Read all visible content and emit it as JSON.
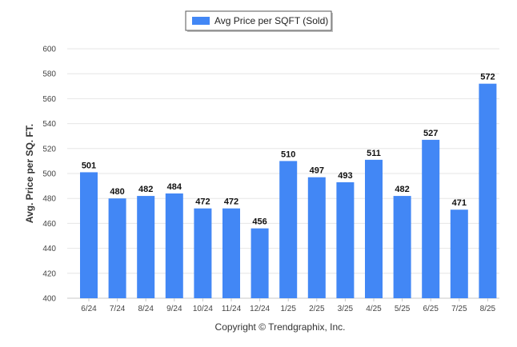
{
  "chart_data": {
    "type": "bar",
    "categories": [
      "6/24",
      "7/24",
      "8/24",
      "9/24",
      "10/24",
      "11/24",
      "12/24",
      "1/25",
      "2/25",
      "3/25",
      "4/25",
      "5/25",
      "6/25",
      "7/25",
      "8/25"
    ],
    "series": [
      {
        "name": "Avg Price per SQFT (Sold)",
        "values": [
          501,
          480,
          482,
          484,
          472,
          472,
          456,
          510,
          497,
          493,
          511,
          482,
          527,
          471,
          572
        ]
      }
    ],
    "ylabel": "Avg. Price per SQ. FT.",
    "ylim": [
      400,
      600
    ],
    "yticks": [
      400,
      420,
      440,
      460,
      480,
      500,
      520,
      540,
      560,
      580,
      600
    ],
    "grid": true,
    "legend_position": "top-center",
    "bar_color": "#4287f5"
  },
  "footer": {
    "copyright": "Copyright © Trendgraphix, Inc."
  }
}
